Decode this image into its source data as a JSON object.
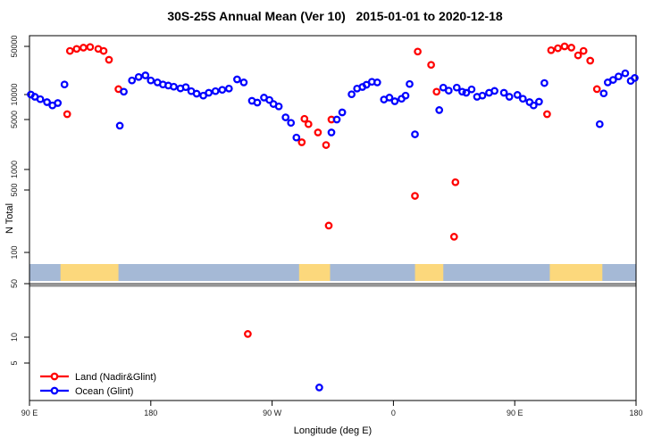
{
  "title": "30S-25S Annual Mean (Ver 10)   2015-01-01 to 2020-12-18",
  "chart_data": {
    "type": "scatter",
    "xlabel": "Longitude (deg E)",
    "ylabel": "N Total",
    "grid": false,
    "legend_position": "bottom-left",
    "x_axis": {
      "note": "longitude axis wraps, plotted 90E eastward through 540 (=180)",
      "range_deg": [
        90,
        540
      ],
      "ticks": [
        {
          "deg": 90,
          "label": "90 E"
        },
        {
          "deg": 180,
          "label": "180"
        },
        {
          "deg": 270,
          "label": "90 W"
        },
        {
          "deg": 360,
          "label": "0"
        },
        {
          "deg": 450,
          "label": "90 E"
        },
        {
          "deg": 540,
          "label": "180"
        }
      ]
    },
    "y_axis": {
      "scale": "log",
      "tick_labels": [
        "50000",
        "10000",
        "5000",
        "1000",
        "500",
        "100",
        "50",
        "10",
        "5"
      ],
      "tick_values": [
        50000,
        10000,
        5000,
        1000,
        500,
        100,
        50,
        10,
        5
      ]
    },
    "map_strip": {
      "description": "land/ocean strip drawn across plot between N=55 and N=90",
      "ocean_color": "#a5b9d6",
      "land_color": "#fcd87c",
      "land_segments_deg": [
        [
          113,
          156
        ],
        [
          290,
          313
        ],
        [
          376,
          397
        ],
        [
          476,
          515
        ]
      ]
    },
    "separator_line": {
      "color": "#8f8f8f",
      "edge_color": "#4d4d4d",
      "at_value": 50
    },
    "series": [
      {
        "name": "Land (Nadir&Glint)",
        "color": "#ff0000",
        "points": [
          [
            118,
            5800
          ],
          [
            120,
            43000
          ],
          [
            125,
            46000
          ],
          [
            130,
            48000
          ],
          [
            135,
            49000
          ],
          [
            141,
            46000
          ],
          [
            145,
            43000
          ],
          [
            149,
            32000
          ],
          [
            156,
            12000
          ],
          [
            252,
            11
          ],
          [
            292,
            2400
          ],
          [
            294,
            5100
          ],
          [
            297,
            4300
          ],
          [
            304,
            3300
          ],
          [
            310,
            2200
          ],
          [
            312,
            200
          ],
          [
            314,
            5000
          ],
          [
            376,
            430
          ],
          [
            378,
            42000
          ],
          [
            388,
            27000
          ],
          [
            392,
            11000
          ],
          [
            405,
            150
          ],
          [
            406,
            650
          ],
          [
            474,
            5800
          ],
          [
            477,
            44000
          ],
          [
            482,
            47000
          ],
          [
            487,
            50000
          ],
          [
            492,
            48000
          ],
          [
            497,
            37000
          ],
          [
            501,
            43000
          ],
          [
            506,
            31000
          ],
          [
            511,
            12000
          ]
        ]
      },
      {
        "name": "Ocean (Glint)",
        "color": "#0000ff",
        "points": [
          [
            91,
            10000
          ],
          [
            94,
            9400
          ],
          [
            98,
            8800
          ],
          [
            103,
            8100
          ],
          [
            107,
            7400
          ],
          [
            111,
            7900
          ],
          [
            116,
            14000
          ],
          [
            157,
            4100
          ],
          [
            160,
            11000
          ],
          [
            166,
            16000
          ],
          [
            171,
            18000
          ],
          [
            176,
            19000
          ],
          [
            180,
            16000
          ],
          [
            185,
            15000
          ],
          [
            189,
            14000
          ],
          [
            193,
            13500
          ],
          [
            197,
            13000
          ],
          [
            202,
            12300
          ],
          [
            206,
            12800
          ],
          [
            210,
            11200
          ],
          [
            214,
            10300
          ],
          [
            219,
            9700
          ],
          [
            223,
            10600
          ],
          [
            228,
            11200
          ],
          [
            233,
            11700
          ],
          [
            238,
            12200
          ],
          [
            244,
            16600
          ],
          [
            249,
            15000
          ],
          [
            255,
            8400
          ],
          [
            259,
            8000
          ],
          [
            264,
            9200
          ],
          [
            268,
            8600
          ],
          [
            271,
            7700
          ],
          [
            275,
            7200
          ],
          [
            280,
            5300
          ],
          [
            284,
            4500
          ],
          [
            288,
            2800
          ],
          [
            305,
            2.6
          ],
          [
            314,
            3300
          ],
          [
            318,
            5000
          ],
          [
            322,
            6100
          ],
          [
            329,
            10100
          ],
          [
            333,
            12200
          ],
          [
            337,
            12900
          ],
          [
            340,
            13900
          ],
          [
            344,
            15300
          ],
          [
            348,
            15000
          ],
          [
            353,
            8700
          ],
          [
            357,
            9200
          ],
          [
            361,
            8300
          ],
          [
            366,
            8900
          ],
          [
            369,
            9700
          ],
          [
            372,
            14200
          ],
          [
            376,
            3100
          ],
          [
            394,
            6500
          ],
          [
            397,
            12600
          ],
          [
            401,
            11400
          ],
          [
            407,
            12600
          ],
          [
            411,
            11000
          ],
          [
            414,
            10600
          ],
          [
            418,
            11900
          ],
          [
            422,
            9400
          ],
          [
            426,
            9700
          ],
          [
            431,
            10600
          ],
          [
            435,
            11300
          ],
          [
            442,
            10600
          ],
          [
            446,
            9400
          ],
          [
            452,
            9900
          ],
          [
            456,
            8900
          ],
          [
            461,
            8100
          ],
          [
            464,
            7400
          ],
          [
            468,
            8200
          ],
          [
            472,
            14700
          ],
          [
            513,
            4300
          ],
          [
            516,
            10400
          ],
          [
            519,
            15000
          ],
          [
            523,
            16300
          ],
          [
            527,
            18300
          ],
          [
            532,
            20300
          ],
          [
            536,
            15800
          ],
          [
            539,
            17400
          ]
        ]
      }
    ]
  }
}
